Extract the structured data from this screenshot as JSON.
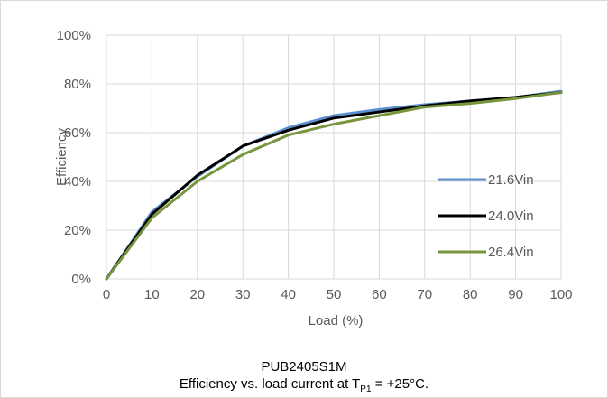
{
  "chart_data": {
    "type": "line",
    "xlabel": "Load (%)",
    "ylabel": "Efficiency",
    "xlim": [
      0,
      100
    ],
    "ylim": [
      0,
      100
    ],
    "x_ticks": [
      "0",
      "10",
      "20",
      "30",
      "40",
      "50",
      "60",
      "70",
      "80",
      "90",
      "100"
    ],
    "y_ticks": [
      "0%",
      "20%",
      "40%",
      "60%",
      "80%",
      "100%"
    ],
    "grid": true,
    "legend_position": "right",
    "x": [
      0,
      10,
      20,
      30,
      40,
      50,
      60,
      70,
      80,
      90,
      100
    ],
    "series": [
      {
        "name": "21.6Vin",
        "color": "#5b8fd0",
        "values": [
          0,
          27.5,
          42,
          54.5,
          62,
          67,
          69.5,
          71.5,
          73,
          74.5,
          77
        ]
      },
      {
        "name": "24.0Vin",
        "color": "#000000",
        "values": [
          0,
          26.5,
          42.5,
          54.5,
          61,
          66,
          68.5,
          71,
          73,
          74.5,
          76.5
        ]
      },
      {
        "name": "26.4Vin",
        "color": "#77963c",
        "values": [
          0,
          25,
          40,
          51,
          59,
          63.5,
          67,
          70.5,
          72,
          74,
          76.5
        ]
      }
    ]
  },
  "caption": {
    "line1": "PUB2405S1M",
    "line2_prefix": "Efficiency vs. load current at T",
    "line2_sub": "P1",
    "line2_suffix": " = +25°C."
  }
}
